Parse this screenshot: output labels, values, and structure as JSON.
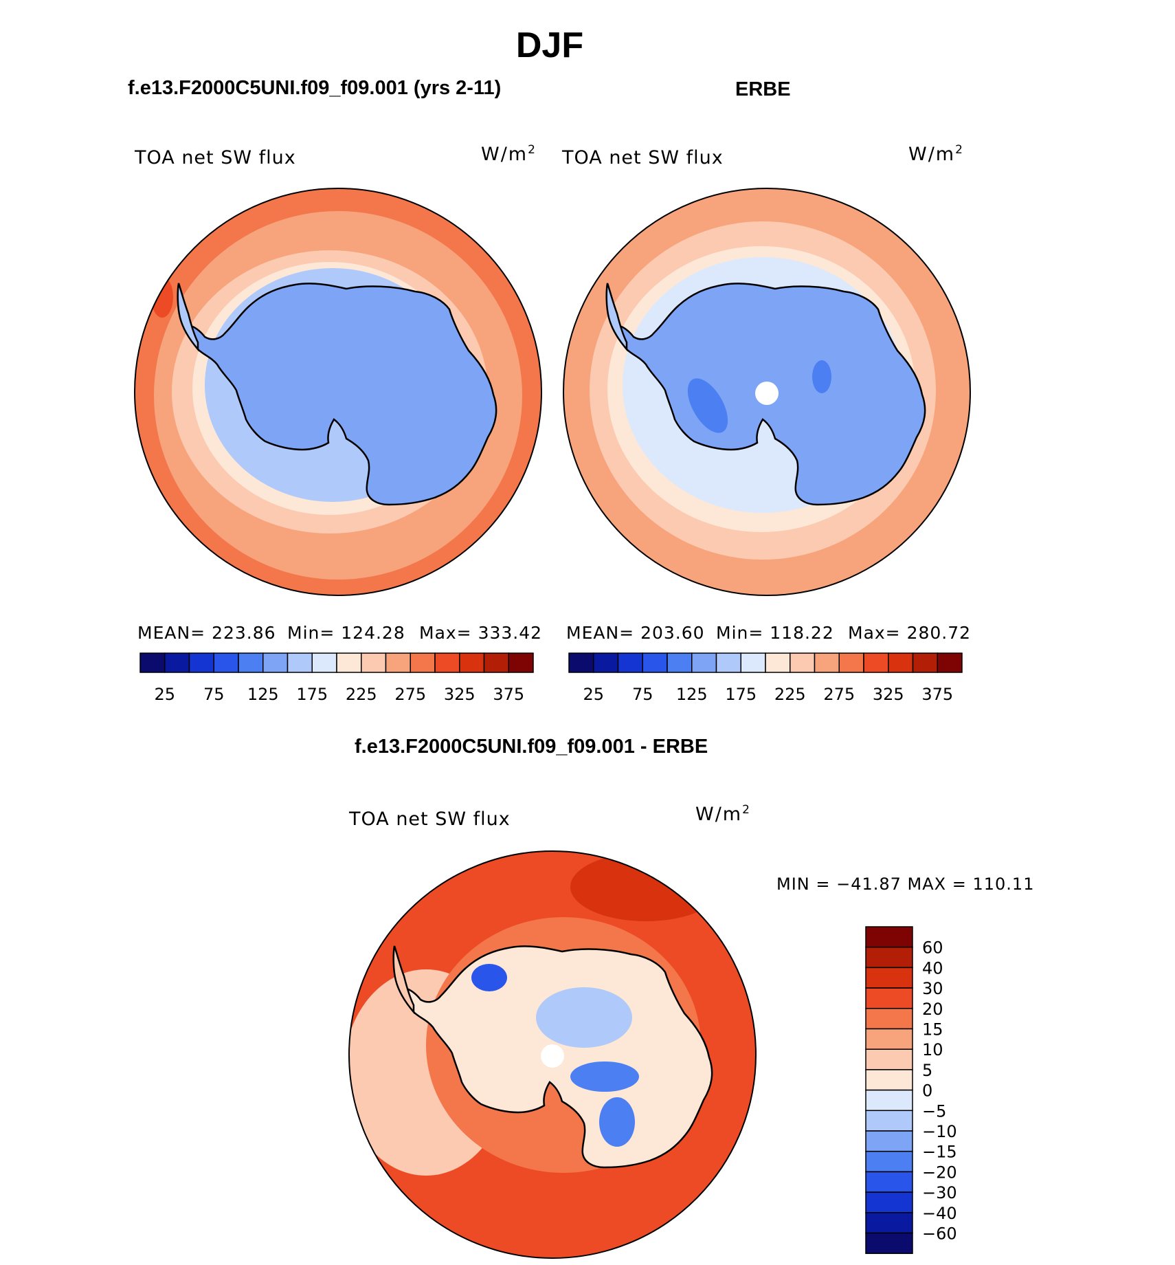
{
  "title": "DJF",
  "panels": [
    {
      "case": "f.e13.F2000C5UNI.f09_f09.001 (yrs 2-11)",
      "variable": "TOA net SW flux",
      "unit_base": "W/m",
      "unit_exp": "2",
      "stats": {
        "mean": "MEAN= 223.86",
        "min": "Min= 124.28",
        "max": "Max= 333.42"
      },
      "has_pole_hole": false
    },
    {
      "case": "ERBE",
      "variable": "TOA net SW flux",
      "unit_base": "W/m",
      "unit_exp": "2",
      "stats": {
        "mean": "MEAN= 203.60",
        "min": "Min= 118.22",
        "max": "Max= 280.72"
      },
      "has_pole_hole": true
    }
  ],
  "abs_colorbar": {
    "colors": [
      "#0b0b6e",
      "#0a1aa0",
      "#1535d2",
      "#2a55ea",
      "#4c7ff2",
      "#7ea4f5",
      "#aec9fa",
      "#dce9fc",
      "#fde7d6",
      "#fbcab0",
      "#f7a37c",
      "#f3774b",
      "#ed4b26",
      "#d8320f",
      "#b31e06",
      "#7e0303"
    ],
    "ticks": [
      "25",
      "75",
      "125",
      "175",
      "225",
      "275",
      "325",
      "375"
    ]
  },
  "diff_panel": {
    "title": "f.e13.F2000C5UNI.f09_f09.001 - ERBE",
    "variable": "TOA net SW flux",
    "unit_base": "W/m",
    "unit_exp": "2",
    "minmax": "MIN = −41.87  MAX = 110.11",
    "colorbar": {
      "colors": [
        "#7e0303",
        "#b31e06",
        "#d8320f",
        "#ed4b26",
        "#f3774b",
        "#f7a37c",
        "#fbcab0",
        "#fde7d6",
        "#dce9fc",
        "#aec9fa",
        "#7ea4f5",
        "#4c7ff2",
        "#2a55ea",
        "#1535d2",
        "#0a1aa0",
        "#0b0b6e"
      ],
      "ticks": [
        "60",
        "40",
        "30",
        "20",
        "15",
        "10",
        "5",
        "0",
        "−5",
        "−10",
        "−15",
        "−20",
        "−30",
        "−40",
        "−60"
      ]
    }
  },
  "map_colors": {
    "ocean_far": "#f3774b",
    "ocean_mid": "#f7a37c",
    "ocean_near": "#fbcab0",
    "ice_edge": "#fde7d6",
    "shelf": "#aec9fa",
    "land": "#7ea4f5",
    "land_dark": "#4c7ff2",
    "diff_ocean": "#ed4b26",
    "diff_pos": "#f3774b",
    "diff_neg": "#aec9fa",
    "diff_neg2": "#4c7ff2",
    "coast": "#000000"
  }
}
